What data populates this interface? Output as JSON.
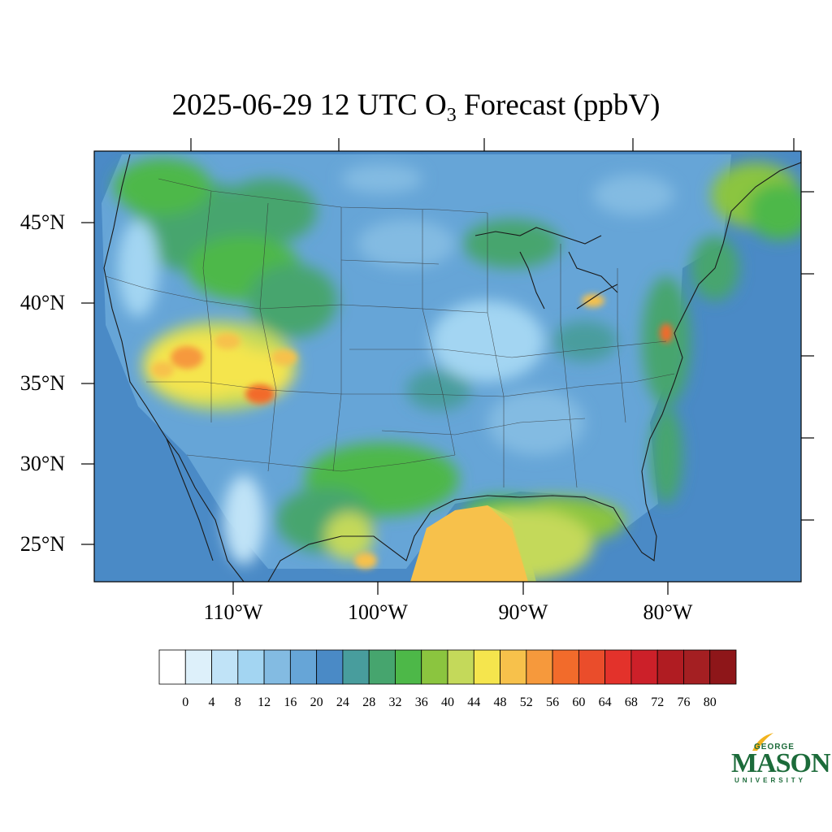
{
  "title": {
    "prefix": "2025-06-29 12 UTC O",
    "subscript": "3",
    "suffix": " Forecast (ppbV)"
  },
  "lat_labels": [
    "45°N",
    "40°N",
    "35°N",
    "30°N",
    "25°N"
  ],
  "lon_labels": [
    "110°W",
    "100°W",
    "90°W",
    "80°W"
  ],
  "colorbar": {
    "labels": [
      "0",
      "4",
      "8",
      "12",
      "16",
      "20",
      "24",
      "28",
      "32",
      "36",
      "40",
      "44",
      "48",
      "52",
      "56",
      "60",
      "64",
      "68",
      "72",
      "76",
      "80"
    ],
    "colors": [
      "#ffffff",
      "#ddf0fa",
      "#c0e3f7",
      "#a3d5f2",
      "#83bbe2",
      "#66a5d7",
      "#4a8ac6",
      "#489d9d",
      "#46a56e",
      "#4db848",
      "#8bc53f",
      "#c4d95a",
      "#f5e54d",
      "#f7c14b",
      "#f6993c",
      "#f26b2b",
      "#ea4d2b",
      "#e3322b",
      "#cc2029",
      "#b01c22",
      "#a41f22",
      "#8e1619"
    ]
  },
  "map": {
    "region": "Contiguous United States",
    "field": "O3 forecast (ppbV)"
  },
  "logo": {
    "line1": "GEORGE",
    "line2": "MASON",
    "line3": "UNIVERSITY"
  }
}
